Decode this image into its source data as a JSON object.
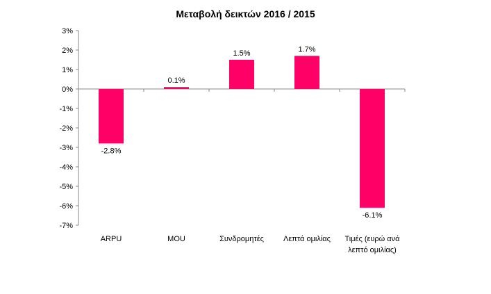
{
  "chart_data": {
    "type": "bar",
    "title": "Μεταβολή δεικτών 2016  / 2015",
    "categories": [
      [
        "ARPU"
      ],
      [
        "MOU"
      ],
      [
        "Συνδρομητές"
      ],
      [
        "Λεπτά ομιλίας"
      ],
      [
        "Τιμές (ευρώ ανά",
        "λεπτό ομιλίας)"
      ]
    ],
    "values": [
      -2.8,
      0.1,
      1.5,
      1.7,
      -6.1
    ],
    "data_labels": [
      "-2.8%",
      "0.1%",
      "1.5%",
      "1.7%",
      "-6.1%"
    ],
    "y_ticks": [
      "3%",
      "2%",
      "1%",
      "0%",
      "-1%",
      "-2%",
      "-3%",
      "-4%",
      "-5%",
      "-6%",
      "-7%"
    ],
    "ylim": [
      -7,
      3
    ],
    "grid": false,
    "legend": "none",
    "bar_color": "#FF0066",
    "axis_color": "#888888"
  }
}
